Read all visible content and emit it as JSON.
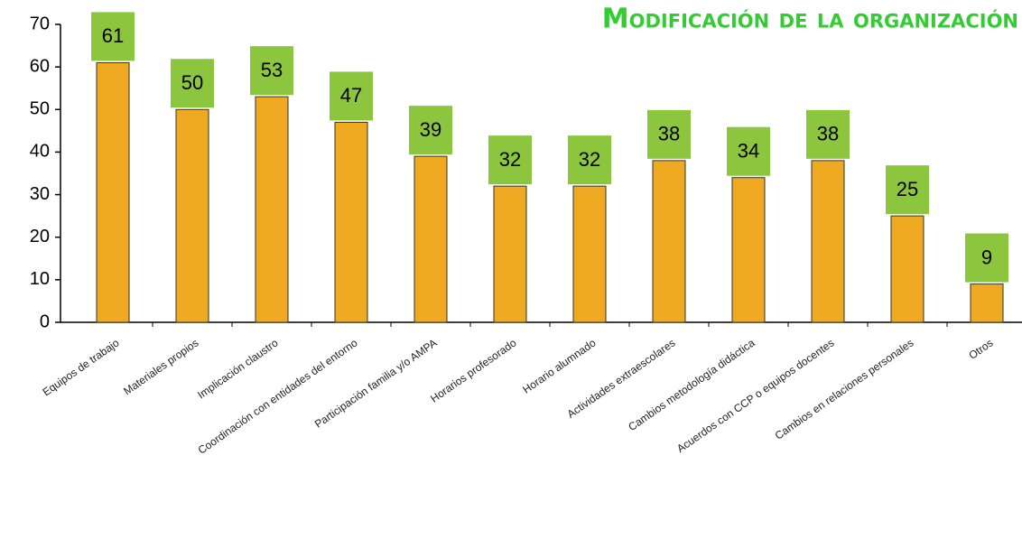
{
  "chart_data": {
    "type": "bar",
    "title": "Modificación de la organización",
    "categories": [
      "Equipos de trabajo",
      "Materiales propios",
      "Implicación claustro",
      "Coordinación con entidades del entorno",
      "Participación familia y/o AMPA",
      "Horarios profesorado",
      "Horario alumnado",
      "Actividades extraescolares",
      "Cambios metodología didáctica",
      "Acuerdos con CCP o equipos docentes",
      "Cambios en relaciones personales",
      "Otros"
    ],
    "values": [
      61,
      50,
      53,
      47,
      39,
      32,
      32,
      38,
      34,
      38,
      25,
      9
    ],
    "color": "#efaa22",
    "label_color": "#8cc63f",
    "ylim": [
      0,
      70
    ],
    "yticks": [
      0,
      10,
      20,
      30,
      40,
      50,
      60,
      70
    ],
    "grid": false
  }
}
